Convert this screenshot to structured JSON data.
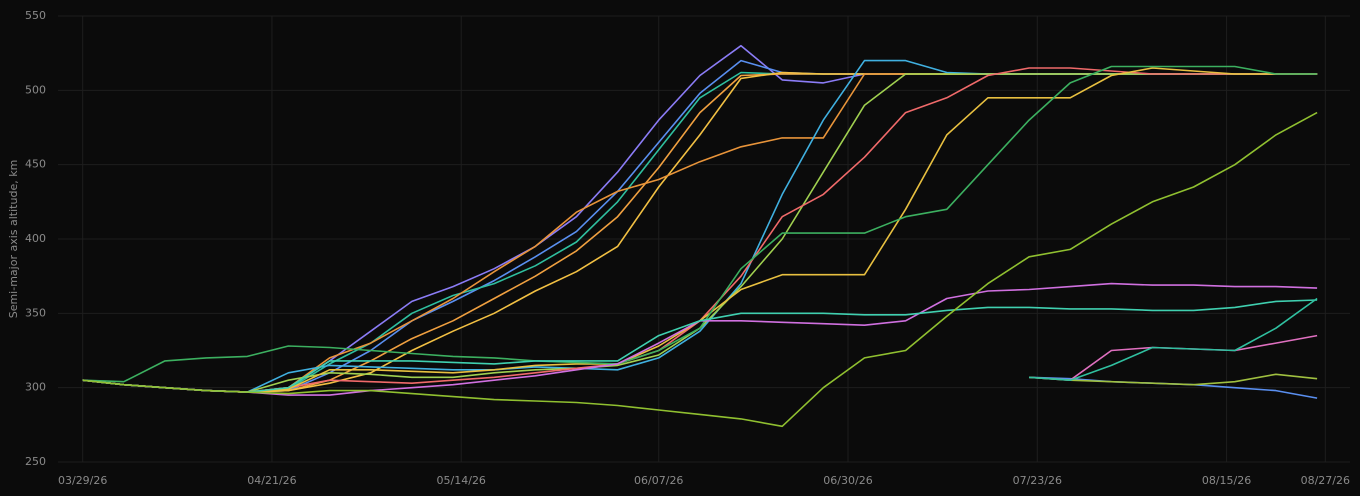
{
  "chart_data": {
    "type": "line",
    "y_label": "Semi-major axis altitude, km",
    "x": [
      "03/29/26",
      "04/03/26",
      "04/08/26",
      "04/13/26",
      "04/18/26",
      "04/23/26",
      "04/28/26",
      "05/03/26",
      "05/08/26",
      "05/13/26",
      "05/18/26",
      "05/23/26",
      "05/28/26",
      "06/02/26",
      "06/07/26",
      "06/12/26",
      "06/17/26",
      "06/22/26",
      "06/27/26",
      "07/02/26",
      "07/07/26",
      "07/12/26",
      "07/17/26",
      "07/22/26",
      "07/27/26",
      "08/01/26",
      "08/06/26",
      "08/11/26",
      "08/16/26",
      "08/21/26",
      "08/26/26"
    ],
    "xlim": [
      "03/26/26",
      "08/30/26"
    ],
    "xticks": [
      "03/29/26",
      "04/21/26",
      "05/14/26",
      "06/07/26",
      "06/30/26",
      "07/23/26",
      "08/15/26",
      "08/27/26"
    ],
    "ylim": [
      250,
      550
    ],
    "yticks": [
      250,
      300,
      350,
      400,
      450,
      500,
      550
    ],
    "grid": true,
    "series": [
      {
        "color": "#8b7cf6",
        "values": [
          305,
          302,
          300,
          298,
          297,
          300,
          318,
          338,
          358,
          368,
          380,
          395,
          415,
          445,
          480,
          510,
          530,
          507,
          505,
          511,
          511,
          511,
          511,
          511,
          511,
          511,
          511,
          511,
          511,
          511,
          511
        ]
      },
      {
        "color": "#5a8ff0",
        "values": [
          305,
          302,
          300,
          298,
          297,
          298,
          310,
          325,
          345,
          358,
          372,
          388,
          405,
          432,
          465,
          498,
          520,
          512,
          511,
          511,
          511,
          511,
          511,
          511,
          511,
          511,
          511,
          511,
          511,
          511,
          511
        ]
      },
      {
        "color": "#2fbf9f",
        "values": [
          305,
          302,
          300,
          298,
          297,
          299,
          316,
          330,
          350,
          362,
          370,
          382,
          398,
          425,
          460,
          495,
          512,
          511,
          511,
          511,
          511,
          511,
          511,
          511,
          511,
          511,
          511,
          511,
          511,
          511,
          511
        ]
      },
      {
        "color": "#f0a040",
        "values": [
          305,
          302,
          300,
          298,
          297,
          298,
          305,
          318,
          333,
          345,
          360,
          375,
          392,
          415,
          448,
          485,
          510,
          511,
          511,
          511,
          511,
          511,
          511,
          511,
          511,
          511,
          511,
          511,
          511,
          511,
          511
        ]
      },
      {
        "color": "#f2c043",
        "values": [
          305,
          302,
          300,
          298,
          297,
          298,
          303,
          310,
          325,
          338,
          350,
          365,
          378,
          395,
          435,
          470,
          508,
          512,
          511,
          511,
          511,
          511,
          511,
          511,
          511,
          511,
          511,
          511,
          511,
          511,
          511
        ]
      },
      {
        "color": "#e8943a",
        "values": [
          305,
          302,
          300,
          298,
          297,
          300,
          320,
          330,
          345,
          360,
          378,
          395,
          418,
          432,
          440,
          452,
          462,
          468,
          468,
          511,
          511,
          511,
          511,
          511,
          511,
          511,
          511,
          511,
          511,
          511,
          511
        ]
      },
      {
        "color": "#40b0e0",
        "values": [
          305,
          302,
          300,
          298,
          297,
          310,
          315,
          314,
          313,
          312,
          312,
          314,
          313,
          312,
          320,
          338,
          370,
          430,
          480,
          520,
          520,
          512,
          511,
          511,
          511,
          511,
          511,
          511,
          511,
          511,
          511
        ]
      },
      {
        "color": "#a0d050",
        "values": [
          305,
          302,
          300,
          298,
          297,
          305,
          310,
          309,
          307,
          307,
          310,
          312,
          313,
          315,
          322,
          340,
          368,
          400,
          445,
          490,
          511,
          511,
          511,
          511,
          511,
          511,
          511,
          511,
          511,
          511,
          511
        ]
      },
      {
        "color": "#f06a6a",
        "values": [
          305,
          302,
          300,
          298,
          297,
          300,
          305,
          304,
          303,
          305,
          307,
          310,
          313,
          316,
          325,
          345,
          375,
          415,
          430,
          455,
          485,
          495,
          510,
          515,
          515,
          513,
          511,
          511,
          511,
          511,
          511
        ]
      },
      {
        "color": "#e8c040",
        "values": [
          305,
          302,
          300,
          298,
          297,
          299,
          312,
          312,
          311,
          310,
          312,
          315,
          316,
          316,
          328,
          345,
          366,
          376,
          376,
          376,
          420,
          470,
          495,
          495,
          495,
          510,
          515,
          513,
          511,
          511,
          511
        ]
      },
      {
        "color": "#3cb060",
        "values": [
          305,
          304,
          318,
          320,
          321,
          328,
          327,
          325,
          323,
          321,
          320,
          318,
          317,
          316,
          325,
          340,
          380,
          404,
          404,
          404,
          415,
          420,
          450,
          480,
          505,
          516,
          516,
          516,
          516,
          511,
          511
        ]
      },
      {
        "color": "#d070e0",
        "values": [
          305,
          302,
          300,
          298,
          297,
          295,
          295,
          298,
          300,
          302,
          305,
          308,
          312,
          316,
          330,
          345,
          345,
          344,
          343,
          342,
          345,
          360,
          365,
          366,
          368,
          370,
          369,
          369,
          368,
          368,
          367
        ]
      },
      {
        "color": "#40d0b0",
        "values": [
          305,
          302,
          300,
          298,
          297,
          300,
          318,
          318,
          318,
          317,
          316,
          318,
          318,
          318,
          335,
          345,
          350,
          350,
          350,
          349,
          349,
          352,
          354,
          354,
          353,
          353,
          352,
          352,
          354,
          358,
          359
        ]
      },
      {
        "color": "#90c030",
        "values": [
          305,
          302,
          300,
          298,
          297,
          296,
          298,
          298,
          296,
          294,
          292,
          291,
          290,
          288,
          285,
          282,
          279,
          274,
          300,
          320,
          325,
          348,
          370,
          388,
          393,
          410,
          425,
          435,
          450,
          470,
          485
        ]
      },
      {
        "color": "#5a8ff0",
        "values": [
          null,
          null,
          null,
          null,
          null,
          null,
          null,
          null,
          null,
          null,
          null,
          null,
          null,
          null,
          null,
          null,
          null,
          null,
          null,
          null,
          null,
          null,
          null,
          307,
          306,
          304,
          303,
          302,
          300,
          298,
          293
        ]
      },
      {
        "color": "#e070c0",
        "values": [
          null,
          null,
          null,
          null,
          null,
          null,
          null,
          null,
          null,
          null,
          null,
          null,
          null,
          null,
          null,
          null,
          null,
          null,
          null,
          null,
          null,
          null,
          null,
          307,
          305,
          325,
          327,
          326,
          325,
          330,
          335
        ]
      },
      {
        "color": "#a0c040",
        "values": [
          null,
          null,
          null,
          null,
          null,
          null,
          null,
          null,
          null,
          null,
          null,
          null,
          null,
          null,
          null,
          null,
          null,
          null,
          null,
          null,
          null,
          null,
          null,
          307,
          305,
          304,
          303,
          302,
          304,
          309,
          306
        ]
      },
      {
        "color": "#30c0a0",
        "values": [
          null,
          null,
          null,
          null,
          null,
          null,
          null,
          null,
          null,
          null,
          null,
          null,
          null,
          null,
          null,
          null,
          null,
          null,
          null,
          null,
          null,
          null,
          null,
          307,
          305,
          315,
          327,
          326,
          325,
          340,
          360
        ]
      }
    ]
  }
}
